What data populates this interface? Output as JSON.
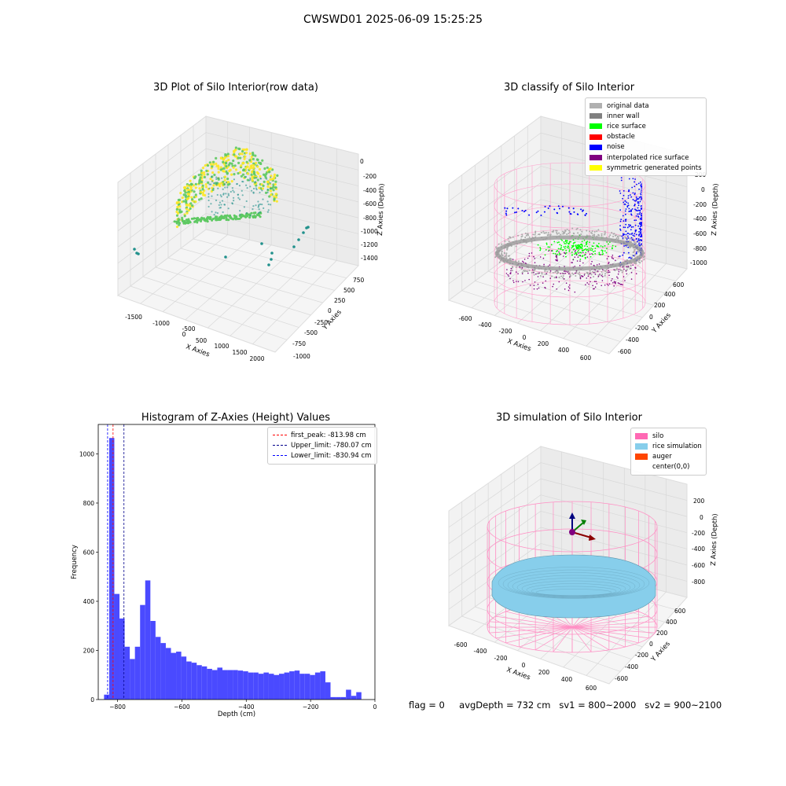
{
  "suptitle": "CWSWD01 2025-06-09 15:25:25",
  "panels": {
    "raw": {
      "title": "3D Plot of Silo Interior(row data)",
      "xlabel": "X Axies",
      "ylabel": "Y Axies",
      "zlabel": "Z Axies (Depth)",
      "xticks": [
        "-1500",
        "-1000",
        "-500",
        "0",
        "500",
        "1000",
        "1500",
        "2000"
      ],
      "yticks": [
        "-1000",
        "-750",
        "-500",
        "-250",
        "0",
        "250",
        "500",
        "750"
      ],
      "zticks": [
        "0",
        "-200",
        "-400",
        "-600",
        "-800",
        "-1000",
        "-1200",
        "-1400"
      ],
      "colormap": [
        "#440154",
        "#21918c",
        "#5ec962",
        "#fde725"
      ]
    },
    "classify": {
      "title": "3D classify of Silo Interior",
      "xlabel": "X Axies",
      "ylabel": "Y Axies",
      "zlabel": "Z Axies (Depth)",
      "xticks": [
        "-600",
        "-400",
        "-200",
        "0",
        "200",
        "400",
        "600"
      ],
      "yticks": [
        "-600",
        "-400",
        "-200",
        "0",
        "200",
        "400",
        "600"
      ],
      "zticks": [
        "200",
        "0",
        "-200",
        "-400",
        "-600",
        "-800",
        "-1000"
      ],
      "legend": [
        {
          "label": "original data",
          "color": "#b0b0b0"
        },
        {
          "label": "inner wall",
          "color": "#808080"
        },
        {
          "label": "rice surface",
          "color": "#00ff00"
        },
        {
          "label": "obstacle",
          "color": "#ff0000"
        },
        {
          "label": "noise",
          "color": "#0000ff"
        },
        {
          "label": "interpolated rice surface",
          "color": "#800080"
        },
        {
          "label": "symmetric generated points",
          "color": "#ffff00"
        }
      ]
    },
    "simulation": {
      "title": "3D simulation of Silo Interior",
      "xlabel": "X Axies",
      "ylabel": "Y Axies",
      "zlabel": "Z Axies (Depth)",
      "xticks": [
        "-600",
        "-400",
        "-200",
        "0",
        "200",
        "400",
        "600"
      ],
      "yticks": [
        "-600",
        "-400",
        "-200",
        "0",
        "200",
        "400",
        "600"
      ],
      "zticks": [
        "200",
        "0",
        "-200",
        "-400",
        "-600",
        "-800"
      ],
      "legend": [
        {
          "label": "silo",
          "color": "#ff69b4"
        },
        {
          "label": "rice simulation",
          "color": "#87ceeb"
        },
        {
          "label": "auger",
          "color": "#ff4500"
        },
        {
          "label": "center(0,0)",
          "color": ""
        }
      ]
    }
  },
  "chart_data": {
    "type": "bar",
    "title": "Histogram of Z-Axies (Height) Values",
    "xlabel": "Depth (cm)",
    "ylabel": "Frequency",
    "xlim": [
      -860,
      0
    ],
    "ylim": [
      0,
      1120
    ],
    "xticks": [
      -800,
      -600,
      -400,
      -200,
      0
    ],
    "yticks": [
      0,
      200,
      400,
      600,
      800,
      1000
    ],
    "bar_color": "#4a4aff",
    "bins": [
      {
        "x0": -842,
        "x1": -826,
        "v": 20
      },
      {
        "x0": -826,
        "x1": -810,
        "v": 1065
      },
      {
        "x0": -810,
        "x1": -794,
        "v": 430
      },
      {
        "x0": -794,
        "x1": -778,
        "v": 330
      },
      {
        "x0": -778,
        "x1": -762,
        "v": 215
      },
      {
        "x0": -762,
        "x1": -746,
        "v": 165
      },
      {
        "x0": -746,
        "x1": -730,
        "v": 215
      },
      {
        "x0": -730,
        "x1": -714,
        "v": 385
      },
      {
        "x0": -714,
        "x1": -698,
        "v": 485
      },
      {
        "x0": -698,
        "x1": -682,
        "v": 320
      },
      {
        "x0": -682,
        "x1": -666,
        "v": 255
      },
      {
        "x0": -666,
        "x1": -650,
        "v": 230
      },
      {
        "x0": -650,
        "x1": -634,
        "v": 210
      },
      {
        "x0": -634,
        "x1": -618,
        "v": 190
      },
      {
        "x0": -618,
        "x1": -602,
        "v": 195
      },
      {
        "x0": -602,
        "x1": -586,
        "v": 175
      },
      {
        "x0": -586,
        "x1": -570,
        "v": 155
      },
      {
        "x0": -570,
        "x1": -554,
        "v": 150
      },
      {
        "x0": -554,
        "x1": -538,
        "v": 140
      },
      {
        "x0": -538,
        "x1": -522,
        "v": 135
      },
      {
        "x0": -522,
        "x1": -506,
        "v": 125
      },
      {
        "x0": -506,
        "x1": -490,
        "v": 120
      },
      {
        "x0": -490,
        "x1": -474,
        "v": 130
      },
      {
        "x0": -474,
        "x1": -458,
        "v": 120
      },
      {
        "x0": -458,
        "x1": -442,
        "v": 120
      },
      {
        "x0": -442,
        "x1": -426,
        "v": 120
      },
      {
        "x0": -426,
        "x1": -410,
        "v": 118
      },
      {
        "x0": -410,
        "x1": -394,
        "v": 115
      },
      {
        "x0": -394,
        "x1": -378,
        "v": 110
      },
      {
        "x0": -378,
        "x1": -362,
        "v": 110
      },
      {
        "x0": -362,
        "x1": -346,
        "v": 105
      },
      {
        "x0": -346,
        "x1": -330,
        "v": 110
      },
      {
        "x0": -330,
        "x1": -314,
        "v": 105
      },
      {
        "x0": -314,
        "x1": -298,
        "v": 100
      },
      {
        "x0": -298,
        "x1": -282,
        "v": 105
      },
      {
        "x0": -282,
        "x1": -266,
        "v": 110
      },
      {
        "x0": -266,
        "x1": -250,
        "v": 115
      },
      {
        "x0": -250,
        "x1": -234,
        "v": 118
      },
      {
        "x0": -234,
        "x1": -218,
        "v": 105
      },
      {
        "x0": -218,
        "x1": -202,
        "v": 105
      },
      {
        "x0": -202,
        "x1": -186,
        "v": 100
      },
      {
        "x0": -186,
        "x1": -170,
        "v": 110
      },
      {
        "x0": -170,
        "x1": -154,
        "v": 115
      },
      {
        "x0": -154,
        "x1": -138,
        "v": 70
      },
      {
        "x0": -138,
        "x1": -122,
        "v": 10
      },
      {
        "x0": -122,
        "x1": -106,
        "v": 10
      },
      {
        "x0": -106,
        "x1": -90,
        "v": 10
      },
      {
        "x0": -90,
        "x1": -74,
        "v": 40
      },
      {
        "x0": -74,
        "x1": -58,
        "v": 15
      },
      {
        "x0": -58,
        "x1": -42,
        "v": 30
      }
    ],
    "vlines": [
      {
        "label": "first_peak: -813.98 cm",
        "x": -813.98,
        "color": "#ff0000"
      },
      {
        "label": "Upper_limit: -780.07 cm",
        "x": -780.07,
        "color": "#00008b"
      },
      {
        "label": "Lower_limit: -830.94 cm",
        "x": -830.94,
        "color": "#0000ff"
      }
    ],
    "legend_position": "upper right"
  },
  "footer": {
    "flag": "flag = 0",
    "avg_depth": "avgDepth = 732 cm",
    "sv1": "sv1 = 800~2000",
    "sv2": "sv2 = 900~2100"
  }
}
